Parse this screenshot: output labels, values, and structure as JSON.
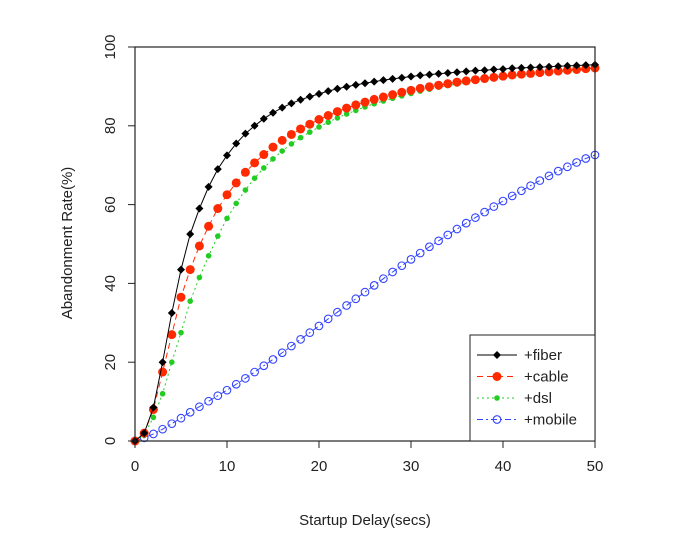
{
  "chart_data": {
    "type": "line",
    "title": "",
    "xlabel": "Startup Delay(secs)",
    "ylabel": "Abandonment Rate(%)",
    "xlim": [
      0,
      50
    ],
    "ylim": [
      0,
      100
    ],
    "x_ticks": [
      0,
      10,
      20,
      30,
      40,
      50
    ],
    "y_ticks": [
      0,
      20,
      40,
      60,
      80,
      100
    ],
    "x_tick_labels": [
      "0",
      "10",
      "20",
      "30",
      "40",
      "50"
    ],
    "y_tick_labels": [
      "0",
      "20",
      "40",
      "60",
      "80",
      "100"
    ],
    "grid": false,
    "legend_position": "bottom-right",
    "x": [
      0,
      1,
      2,
      3,
      4,
      5,
      6,
      7,
      8,
      9,
      10,
      11,
      12,
      13,
      14,
      15,
      16,
      17,
      18,
      19,
      20,
      21,
      22,
      23,
      24,
      25,
      26,
      27,
      28,
      29,
      30,
      31,
      32,
      33,
      34,
      35,
      36,
      37,
      38,
      39,
      40,
      41,
      42,
      43,
      44,
      45,
      46,
      47,
      48,
      49,
      50
    ],
    "series": [
      {
        "name": "+fiber",
        "color": "#000000",
        "marker": "diamond",
        "line_style": "solid",
        "values": [
          0,
          2,
          8.5,
          20,
          32.5,
          43.5,
          52.5,
          59,
          64.5,
          69,
          72.5,
          75.5,
          78,
          80,
          81.8,
          83.3,
          84.6,
          85.7,
          86.6,
          87.4,
          88.1,
          88.8,
          89.4,
          89.9,
          90.4,
          90.8,
          91.2,
          91.6,
          91.9,
          92.2,
          92.5,
          92.8,
          93,
          93.2,
          93.4,
          93.6,
          93.8,
          94,
          94.1,
          94.3,
          94.4,
          94.6,
          94.7,
          94.8,
          94.9,
          95,
          95.1,
          95.2,
          95.3,
          95.4,
          95.5
        ]
      },
      {
        "name": "+cable",
        "color": "#ff2a00",
        "marker": "circle-filled",
        "line_style": "dashed",
        "values": [
          0,
          2,
          8,
          17.5,
          27,
          36.5,
          43.5,
          49.5,
          54.5,
          59,
          62.5,
          65.5,
          68.2,
          70.6,
          72.7,
          74.6,
          76.3,
          77.8,
          79.2,
          80.4,
          81.6,
          82.6,
          83.6,
          84.5,
          85.3,
          86,
          86.7,
          87.3,
          87.9,
          88.5,
          89,
          89.5,
          89.9,
          90.3,
          90.7,
          91.1,
          91.4,
          91.7,
          92,
          92.3,
          92.6,
          92.9,
          93.1,
          93.3,
          93.5,
          93.7,
          93.9,
          94.1,
          94.3,
          94.5,
          94.7
        ]
      },
      {
        "name": "+dsl",
        "color": "#22cc22",
        "marker": "circle-small",
        "line_style": "dotted",
        "values": [
          0,
          1.5,
          6,
          12,
          20,
          27.5,
          35.5,
          41.5,
          47,
          52,
          56.5,
          60.3,
          63.7,
          66.7,
          69.3,
          71.6,
          73.6,
          75.4,
          77,
          78.4,
          79.7,
          80.9,
          82,
          83,
          83.9,
          84.8,
          85.6,
          86.3,
          87,
          87.6,
          88.2,
          88.8,
          89.3,
          89.8,
          90.2,
          90.6,
          91,
          91.4,
          91.7,
          92,
          92.3,
          92.6,
          92.9,
          93.1,
          93.3,
          93.5,
          93.7,
          93.9,
          94.1,
          94.2,
          94.3
        ]
      },
      {
        "name": "+mobile",
        "color": "#3344ff",
        "marker": "circle-open",
        "line_style": "dashdot",
        "values": [
          0,
          0.8,
          1.8,
          3,
          4.4,
          5.8,
          7.3,
          8.7,
          10.1,
          11.5,
          12.9,
          14.4,
          15.9,
          17.5,
          19.1,
          20.7,
          22.4,
          24.1,
          25.8,
          27.5,
          29.2,
          31,
          32.7,
          34.4,
          36.1,
          37.8,
          39.5,
          41.2,
          42.9,
          44.5,
          46.1,
          47.7,
          49.3,
          50.8,
          52.3,
          53.8,
          55.3,
          56.7,
          58.1,
          59.5,
          60.9,
          62.2,
          63.5,
          64.8,
          66.1,
          67.3,
          68.5,
          69.6,
          70.7,
          71.7,
          72.6
        ]
      }
    ]
  }
}
